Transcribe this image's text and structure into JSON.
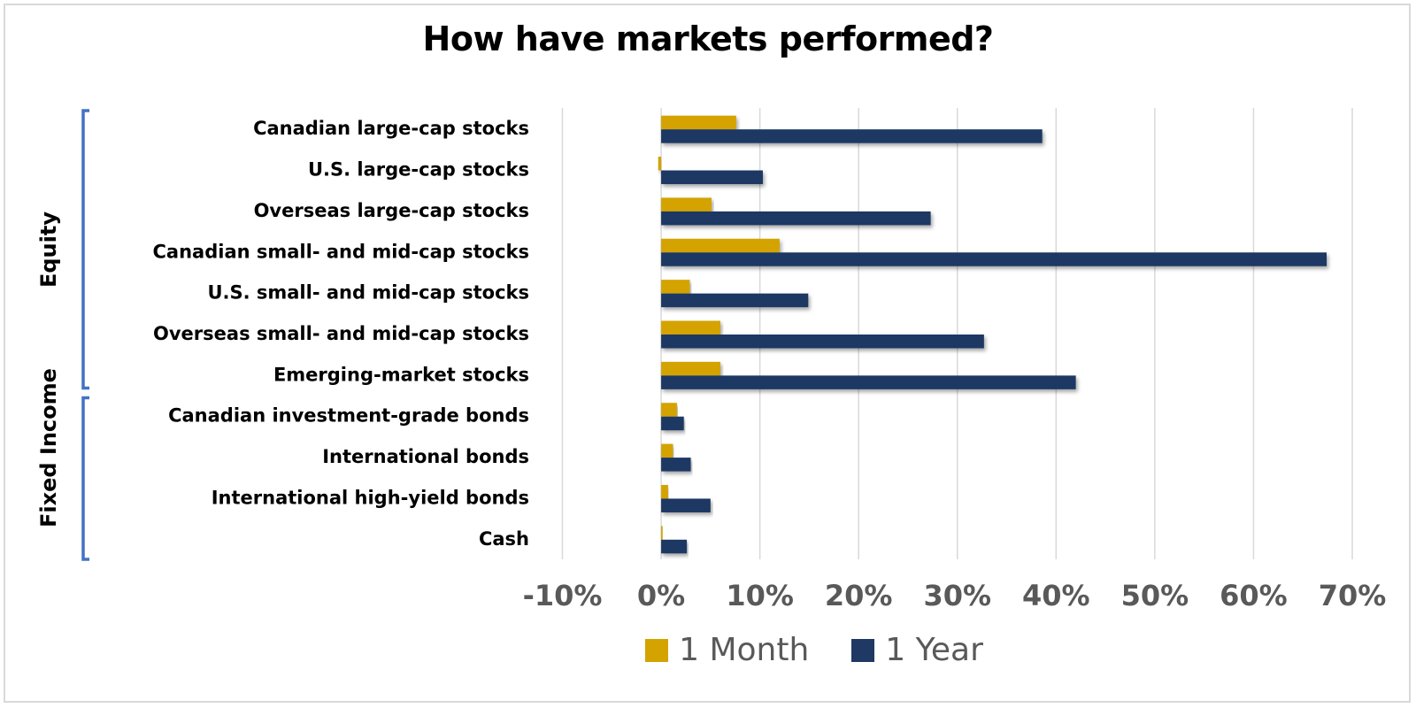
{
  "chart_data": {
    "type": "bar",
    "orientation": "horizontal",
    "title": "How have markets performed?",
    "categories": [
      "Canadian large-cap stocks",
      "U.S. large-cap stocks",
      "Overseas large-cap stocks",
      "Canadian small- and mid-cap stocks",
      "U.S. small- and mid-cap stocks",
      "Overseas small- and mid-cap stocks",
      "Emerging-market stocks",
      "Canadian investment-grade bonds",
      "International bonds",
      "International high-yield bonds",
      "Cash"
    ],
    "groups": [
      {
        "label": "Equity",
        "categories": 7
      },
      {
        "label": "Fixed Income",
        "categories": 4
      }
    ],
    "series": [
      {
        "name": "1 Month",
        "color": "#d4a300",
        "values": [
          7.6,
          -0.3,
          5.1,
          12.0,
          2.9,
          6.0,
          6.0,
          1.6,
          1.2,
          0.7,
          0.15
        ]
      },
      {
        "name": "1 Year",
        "color": "#1f3864",
        "values": [
          38.6,
          10.3,
          27.3,
          67.4,
          14.9,
          32.7,
          42.0,
          2.3,
          3.0,
          5.0,
          2.6
        ]
      }
    ],
    "xlim": [
      -10,
      70
    ],
    "xticks": [
      "-10%",
      "0%",
      "10%",
      "20%",
      "30%",
      "40%",
      "50%",
      "60%",
      "70%"
    ],
    "grid": true,
    "legend": "bottom",
    "bracket_color": "#4472c4"
  }
}
